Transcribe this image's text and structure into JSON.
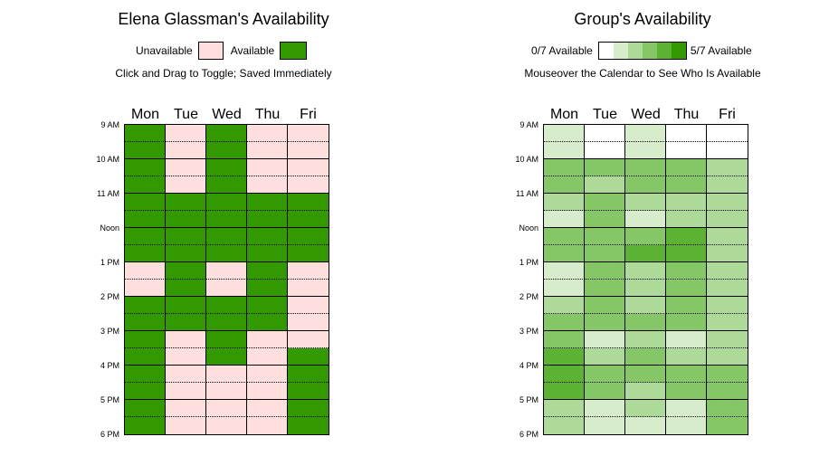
{
  "you": {
    "title": "Elena Glassman's Availability",
    "legend_unavailable": "Unavailable",
    "legend_available": "Available",
    "instructions": "Click and Drag to Toggle; Saved Immediately",
    "unavailable_color": "#ffdede",
    "available_color": "#339900"
  },
  "group": {
    "title": "Group's Availability",
    "legend_min": "0/7 Available",
    "legend_max": "5/7 Available",
    "instructions": "Mouseover the Calendar to See Who Is Available",
    "scale_colors": [
      "#ffffff",
      "#d6eccb",
      "#add999",
      "#85c666",
      "#5cb333",
      "#339900"
    ]
  },
  "days": [
    "Mon",
    "Tue",
    "Wed",
    "Thu",
    "Fri"
  ],
  "time_labels": [
    "9 AM",
    "10 AM",
    "11 AM",
    "Noon",
    "1 PM",
    "2 PM",
    "3 PM",
    "4 PM",
    "5 PM",
    "6 PM"
  ],
  "you_slots": [
    [
      1,
      0,
      1,
      0,
      0
    ],
    [
      1,
      0,
      1,
      0,
      0
    ],
    [
      1,
      0,
      1,
      0,
      0
    ],
    [
      1,
      0,
      1,
      0,
      0
    ],
    [
      1,
      1,
      1,
      1,
      1
    ],
    [
      1,
      1,
      1,
      1,
      1
    ],
    [
      1,
      1,
      1,
      1,
      1
    ],
    [
      1,
      1,
      1,
      1,
      1
    ],
    [
      0,
      1,
      0,
      1,
      0
    ],
    [
      0,
      1,
      0,
      1,
      0
    ],
    [
      1,
      1,
      1,
      1,
      0
    ],
    [
      1,
      1,
      1,
      1,
      0
    ],
    [
      1,
      0,
      1,
      0,
      0
    ],
    [
      1,
      0,
      1,
      0,
      1
    ],
    [
      1,
      0,
      0,
      0,
      1
    ],
    [
      1,
      0,
      0,
      0,
      1
    ],
    [
      1,
      0,
      0,
      0,
      1
    ],
    [
      1,
      0,
      0,
      0,
      1
    ]
  ],
  "group_counts": [
    [
      1,
      0,
      1,
      0,
      0
    ],
    [
      1,
      0,
      1,
      0,
      0
    ],
    [
      3,
      3,
      3,
      3,
      2
    ],
    [
      3,
      2,
      3,
      3,
      2
    ],
    [
      2,
      3,
      2,
      2,
      2
    ],
    [
      1,
      3,
      1,
      2,
      2
    ],
    [
      3,
      3,
      3,
      4,
      2
    ],
    [
      3,
      3,
      4,
      4,
      2
    ],
    [
      1,
      3,
      2,
      3,
      2
    ],
    [
      1,
      3,
      2,
      3,
      2
    ],
    [
      2,
      3,
      2,
      3,
      2
    ],
    [
      3,
      3,
      3,
      3,
      2
    ],
    [
      3,
      1,
      2,
      1,
      2
    ],
    [
      4,
      2,
      3,
      2,
      2
    ],
    [
      4,
      3,
      3,
      3,
      3
    ],
    [
      4,
      3,
      2,
      3,
      3
    ],
    [
      2,
      1,
      2,
      1,
      3
    ],
    [
      2,
      1,
      1,
      1,
      3
    ]
  ]
}
